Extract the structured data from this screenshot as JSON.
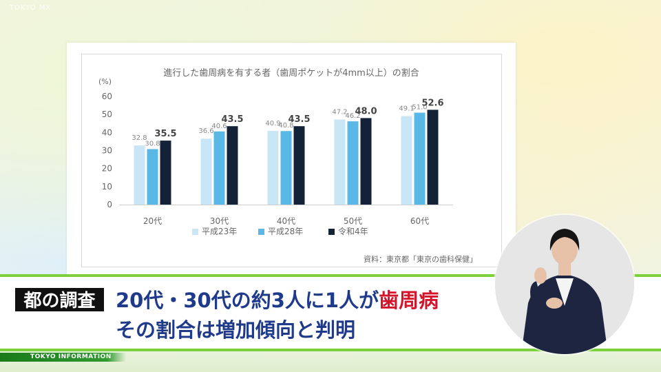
{
  "watermark": "TOKYO MX",
  "chart_data": {
    "type": "bar",
    "title": "進行した歯周病を有する者（歯周ポケットが4mm以上）の割合",
    "ylabel": "(%)",
    "ylim": [
      0,
      60
    ],
    "yticks": [
      "0",
      "10",
      "20",
      "30",
      "40",
      "50",
      "60"
    ],
    "categories": [
      "20代",
      "30代",
      "40代",
      "50代",
      "60代"
    ],
    "series": [
      {
        "name": "平成23年",
        "color": "#c8e6f5",
        "values": [
          32.8,
          36.6,
          40.9,
          47.2,
          49.1
        ],
        "labels": [
          "32.8",
          "36.6",
          "40.9",
          "47.2",
          "49.1"
        ]
      },
      {
        "name": "平成28年",
        "color": "#5ab8e6",
        "values": [
          30.8,
          40.6,
          40.8,
          46.2,
          51.0
        ],
        "labels": [
          "30.8",
          "40.6",
          "40.8",
          "46.2",
          "51.0"
        ]
      },
      {
        "name": "令和4年",
        "color": "#142238",
        "values": [
          35.5,
          43.5,
          43.5,
          48.0,
          52.6
        ],
        "labels": [
          "35.5",
          "43.5",
          "43.5",
          "48.0",
          "52.6"
        ]
      }
    ],
    "legend_position": "bottom",
    "grid": false,
    "source": "資料：東京都「東京の歯科保健」"
  },
  "caption": {
    "tag": "都の調査",
    "line1_main": "20代・30代の約3人に1人が",
    "line1_highlight": "歯周病",
    "line2": "その割合は増加傾向と判明"
  },
  "ticker": "TOKYO  INFORMATION",
  "colors": {
    "accent_green": "#7bd03c",
    "headline_blue": "#1f3a8a",
    "highlight_red": "#d4142a"
  }
}
